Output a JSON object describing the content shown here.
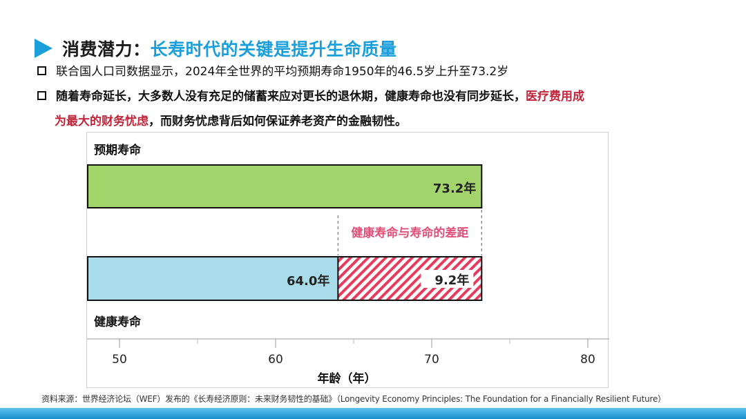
{
  "slide": {
    "title_prefix": "消费潜力：",
    "title_main": "长寿时代的关键是提升生命质量",
    "bullet1": "联合国人口司数据显示，2024年全世界的平均预期寿命1950年的46.5岁上升至73.2岁",
    "bullet2_part1": "随着寿命延长，大多数人没有充足的储蓄来应对更长的退休期，健康寿命也没有同步延长，",
    "bullet2_red1": "医疗费用成",
    "bullet2_red2": "为最大的财务忧虑",
    "bullet2_part2": "，而财务忧虑背后如何保证养老资产的金融韧性。",
    "source": "资料来源：世界经济论坛（WEF）发布的《长寿经济原则：未来财务韧性的基础》（Longevity Economy Principles: The Foundation for a Financially Resilient Future）"
  },
  "colors": {
    "accent": "#1a9fdb",
    "red": "#c0243a",
    "green": "#a3d36b",
    "blue": "#a9dcea",
    "hatch": "#e83a5c",
    "gap_label": "#e0507a"
  },
  "chart_data": {
    "type": "bar",
    "orientation": "horizontal",
    "xlabel": "年龄（年）",
    "xlim": [
      50,
      80
    ],
    "xticks": [
      50,
      60,
      70,
      80
    ],
    "bars": [
      {
        "label": "预期寿命",
        "value": 73.2,
        "value_label": "73.2年"
      },
      {
        "label": "健康寿命",
        "value": 64.0,
        "value_label": "64.0年",
        "gap": {
          "start": 64.0,
          "end": 73.2,
          "value_label": "9.2年"
        }
      }
    ],
    "annotation": "健康寿命与寿命的差距"
  }
}
